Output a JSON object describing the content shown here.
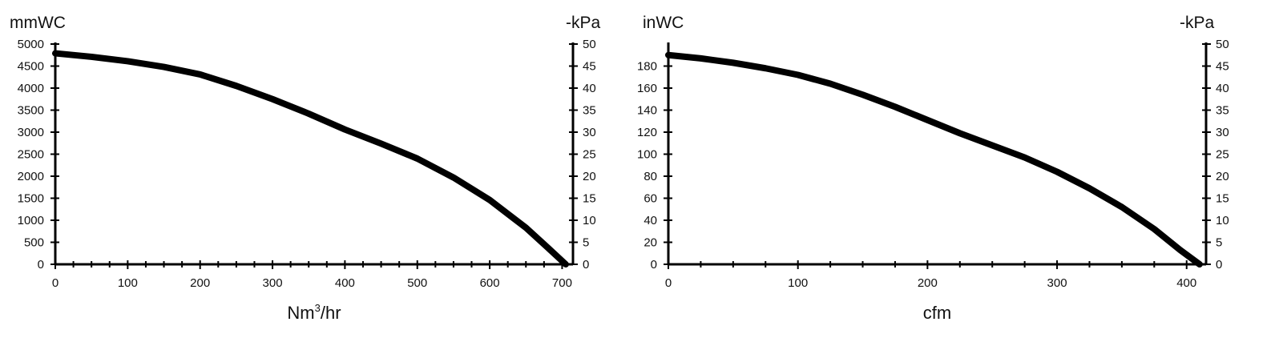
{
  "chart_data": [
    {
      "type": "line",
      "ylabel_left": "mmWC",
      "ylabel_right": "-kPa",
      "xlabel_main": "Nm",
      "xlabel_sup": "3",
      "xlabel_suffix": "/hr",
      "xlim": [
        0,
        715
      ],
      "ylim": [
        0,
        5000
      ],
      "ylim_right": [
        0,
        50
      ],
      "x_ticks": [
        0,
        100,
        200,
        300,
        400,
        500,
        600,
        700
      ],
      "y_ticks": [
        0,
        500,
        1000,
        1500,
        2000,
        2500,
        3000,
        3500,
        4000,
        4500,
        5000
      ],
      "y_ticks_right": [
        0,
        5,
        10,
        15,
        20,
        25,
        30,
        35,
        40,
        45,
        50
      ],
      "grid": false,
      "series": [
        {
          "x": [
            0,
            50,
            100,
            150,
            200,
            250,
            300,
            350,
            400,
            450,
            500,
            550,
            600,
            650,
            680,
            705
          ],
          "y": [
            4790,
            4710,
            4610,
            4480,
            4310,
            4050,
            3750,
            3420,
            3060,
            2740,
            2400,
            1970,
            1460,
            830,
            380,
            0
          ]
        }
      ]
    },
    {
      "type": "line",
      "ylabel_left": "inWC",
      "ylabel_right": "-kPa",
      "xlabel_main": "cfm",
      "xlabel_sup": "",
      "xlabel_suffix": "",
      "xlim": [
        0,
        415
      ],
      "ylim": [
        0,
        200
      ],
      "ylim_right": [
        0,
        50
      ],
      "x_ticks": [
        0,
        100,
        200,
        300,
        400
      ],
      "y_ticks": [
        0,
        20,
        40,
        60,
        80,
        100,
        120,
        140,
        160,
        180
      ],
      "y_ticks_right": [
        0,
        5,
        10,
        15,
        20,
        25,
        30,
        35,
        40,
        45,
        50
      ],
      "grid": false,
      "series": [
        {
          "x": [
            0,
            25,
            50,
            75,
            100,
            125,
            150,
            175,
            200,
            225,
            250,
            275,
            300,
            325,
            350,
            375,
            395,
            410
          ],
          "y": [
            190,
            187,
            183,
            178,
            172,
            164,
            154,
            143,
            131,
            119,
            108,
            97,
            84,
            69,
            52,
            32,
            13,
            0
          ]
        }
      ]
    }
  ]
}
